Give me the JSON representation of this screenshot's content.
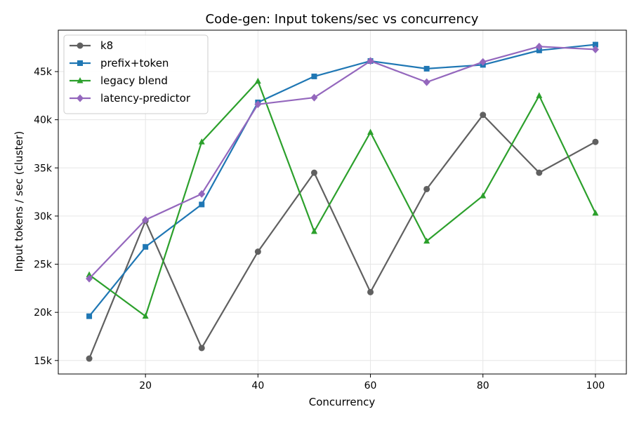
{
  "chart_data": {
    "type": "line",
    "title": "Code-gen: Input tokens/sec vs concurrency",
    "xlabel": "Concurrency",
    "ylabel": "Input tokens / sec (cluster)",
    "x": [
      10,
      20,
      30,
      40,
      50,
      60,
      70,
      80,
      90,
      100
    ],
    "xlim": [
      4.5,
      105.5
    ],
    "ylim": [
      13600,
      49300
    ],
    "xticks": [
      20,
      40,
      60,
      80,
      100
    ],
    "yticks": [
      15000,
      20000,
      25000,
      30000,
      35000,
      40000,
      45000
    ],
    "ytick_labels": [
      "15k",
      "20k",
      "25k",
      "30k",
      "35k",
      "40k",
      "45k"
    ],
    "grid": true,
    "legend_position": "upper left",
    "series": [
      {
        "name": "k8",
        "color": "#606060",
        "marker": "circle",
        "values": [
          15200,
          29500,
          16300,
          26300,
          34500,
          22100,
          32800,
          40500,
          34500,
          37700
        ]
      },
      {
        "name": "prefix+token",
        "color": "#1f77b4",
        "marker": "square",
        "values": [
          19600,
          26800,
          31200,
          41800,
          44500,
          46100,
          45300,
          45700,
          47200,
          47800
        ]
      },
      {
        "name": "legacy blend",
        "color": "#2ca02c",
        "marker": "triangle",
        "values": [
          23900,
          19600,
          37700,
          44000,
          28400,
          38700,
          27400,
          32100,
          42500,
          30300
        ]
      },
      {
        "name": "latency-predictor",
        "color": "#9467bd",
        "marker": "diamond",
        "values": [
          23500,
          29600,
          32300,
          41600,
          42300,
          46100,
          43900,
          46000,
          47600,
          47300
        ]
      }
    ]
  }
}
